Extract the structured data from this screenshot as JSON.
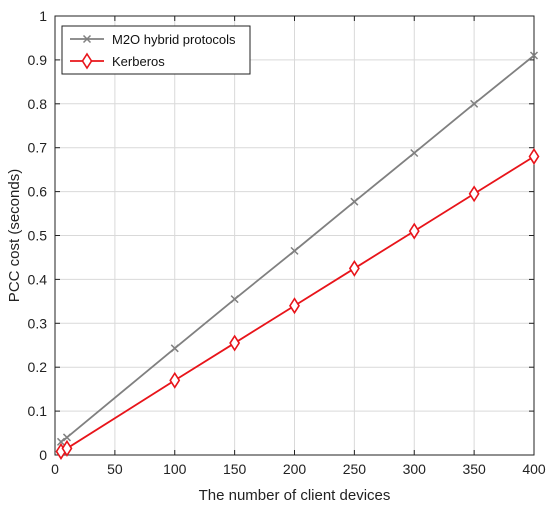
{
  "chart_data": {
    "type": "line",
    "title": "",
    "xlabel": "The number of client devices",
    "ylabel": "PCC cost (seconds)",
    "xlim": [
      0,
      400
    ],
    "ylim": [
      0,
      1
    ],
    "x_ticks": [
      0,
      50,
      100,
      150,
      200,
      250,
      300,
      350,
      400
    ],
    "y_ticks": [
      0,
      0.1,
      0.2,
      0.3,
      0.4,
      0.5,
      0.6,
      0.7,
      0.8,
      0.9,
      1
    ],
    "grid": true,
    "legend_position": "top-left",
    "series": [
      {
        "name": "M2O hybrid protocols",
        "color": "#808080",
        "marker": "x",
        "x": [
          5,
          10,
          100,
          150,
          200,
          250,
          300,
          350,
          400
        ],
        "y": [
          0.03,
          0.04,
          0.243,
          0.355,
          0.465,
          0.577,
          0.688,
          0.8,
          0.91
        ]
      },
      {
        "name": "Kerberos",
        "color": "#e8141a",
        "marker": "diamond",
        "x": [
          5,
          10,
          100,
          150,
          200,
          250,
          300,
          350,
          400
        ],
        "y": [
          0.008,
          0.015,
          0.17,
          0.255,
          0.34,
          0.425,
          0.51,
          0.595,
          0.68
        ]
      }
    ]
  }
}
